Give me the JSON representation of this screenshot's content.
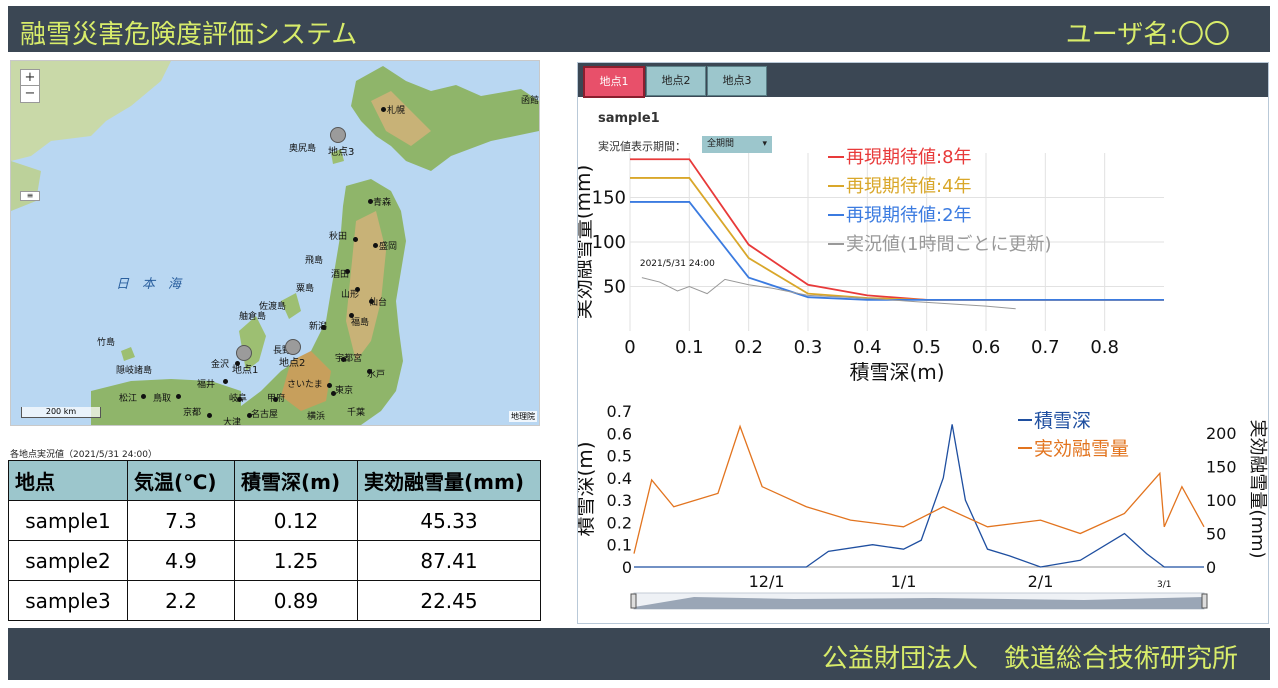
{
  "header": {
    "title": "融雪災害危険度評価システム",
    "user_label": "ユーザ名:〇〇"
  },
  "footer": {
    "organization": "公益財団法人　鉄道総合技術研究所"
  },
  "map": {
    "zoom_in": "+",
    "zoom_out": "−",
    "sea_label": "日　本　海",
    "places": [
      "函館",
      "札幌",
      "奥尻島",
      "青森",
      "秋田",
      "盛岡",
      "飛島",
      "酒田",
      "粟島",
      "山形",
      "仙台",
      "佐渡島",
      "新潟",
      "福島",
      "舳倉島",
      "竹島",
      "隠岐諸島",
      "松江",
      "鳥取",
      "福井",
      "金沢",
      "長野",
      "宇都宮",
      "水戸",
      "さいたま",
      "東京",
      "千葉",
      "甲府",
      "岐阜",
      "名古屋",
      "京都",
      "大津",
      "横浜"
    ],
    "markers": [
      "地点3",
      "地点1",
      "地点2"
    ],
    "scale": "200 km",
    "attribution": "地理院"
  },
  "observations": {
    "caption": "各地点実況値（2021/5/31 24:00）",
    "columns": [
      "地点",
      "気温(℃)",
      "積雪深(m)",
      "実効融雪量(mm)"
    ],
    "rows": [
      [
        "sample1",
        "7.3",
        "0.12",
        "45.33"
      ],
      [
        "sample2",
        "4.9",
        "1.25",
        "87.41"
      ],
      [
        "sample3",
        "2.2",
        "0.89",
        "22.45"
      ]
    ]
  },
  "panel": {
    "tabs": [
      "地点1",
      "地点2",
      "地点3"
    ],
    "active_tab": 0,
    "sample_title": "sample1",
    "period_label": "実況値表示期間：",
    "period_value": "全期間"
  },
  "colors": {
    "header_bg": "#3b4754",
    "title_text": "#d8ec6a",
    "tab_active": "#e8506a",
    "tab": "#9cc6cc"
  },
  "chart_data": [
    {
      "type": "line",
      "xlabel": "積雪深(m)",
      "ylabel": "実効融雪量(mm)",
      "xlim": [
        0,
        0.9
      ],
      "ylim": [
        0,
        200
      ],
      "xticks": [
        "0",
        "0.1",
        "0.2",
        "0.3",
        "0.4",
        "0.5",
        "0.6",
        "0.7",
        "0.8"
      ],
      "yticks": [
        "50",
        "100",
        "150"
      ],
      "grid": true,
      "legend_position": "top-right",
      "annotation": "2021/5/31 24:00",
      "series": [
        {
          "name": "再現期待値:8年",
          "color": "#e83a3a",
          "x": [
            0,
            0.1,
            0.2,
            0.3,
            0.4,
            0.5,
            0.9
          ],
          "y": [
            193,
            193,
            97,
            52,
            40,
            35,
            35
          ]
        },
        {
          "name": "再現期待値:4年",
          "color": "#d9a72a",
          "x": [
            0,
            0.1,
            0.2,
            0.3,
            0.4,
            0.5,
            0.9
          ],
          "y": [
            172,
            172,
            82,
            42,
            37,
            35,
            35
          ]
        },
        {
          "name": "再現期待値:2年",
          "color": "#3b7be0",
          "x": [
            0,
            0.1,
            0.2,
            0.3,
            0.4,
            0.5,
            0.9
          ],
          "y": [
            145,
            145,
            60,
            38,
            35,
            35,
            35
          ]
        },
        {
          "name": "実況値(1時間ごとに更新)",
          "color": "#999999",
          "x": [
            0.02,
            0.05,
            0.08,
            0.1,
            0.13,
            0.16,
            0.2,
            0.24,
            0.3,
            0.36,
            0.42,
            0.48,
            0.55,
            0.6,
            0.65
          ],
          "y": [
            60,
            55,
            45,
            50,
            42,
            58,
            52,
            48,
            40,
            38,
            36,
            33,
            30,
            28,
            25
          ]
        }
      ]
    },
    {
      "type": "line",
      "xlabel": "",
      "ylabel": "積雪深(m)",
      "ylabel_right": "実効融雪量(mm)",
      "ylim": [
        0,
        0.7
      ],
      "ylim_right": [
        0,
        233
      ],
      "xticks": [
        "12/1",
        "1/1",
        "2/1",
        "3/1"
      ],
      "yticks": [
        "0",
        "0.1",
        "0.2",
        "0.3",
        "0.4",
        "0.5",
        "0.6",
        "0.7"
      ],
      "yticks_right": [
        "0",
        "50",
        "100",
        "150",
        "200"
      ],
      "legend_position": "top-right",
      "series": [
        {
          "name": "積雪深",
          "axis": "left",
          "color": "#1f4fa0",
          "x": [
            "11/1",
            "11/20",
            "12/10",
            "12/15",
            "12/25",
            "1/1",
            "1/5",
            "1/10",
            "1/12",
            "1/15",
            "1/20",
            "1/25",
            "2/1",
            "2/10",
            "2/20",
            "2/25",
            "3/1",
            "3/10"
          ],
          "y": [
            0,
            0,
            0,
            0.07,
            0.1,
            0.08,
            0.12,
            0.4,
            0.64,
            0.3,
            0.08,
            0.05,
            0,
            0.03,
            0.15,
            0.06,
            0,
            0
          ]
        },
        {
          "name": "実効融雪量",
          "axis": "right",
          "color": "#e2741f",
          "x": [
            "11/1",
            "11/5",
            "11/10",
            "11/20",
            "11/25",
            "11/30",
            "12/10",
            "12/20",
            "1/1",
            "1/10",
            "1/20",
            "2/1",
            "2/10",
            "2/20",
            "2/28",
            "3/1",
            "3/5",
            "3/10"
          ],
          "y": [
            20,
            130,
            90,
            110,
            210,
            120,
            90,
            70,
            60,
            90,
            60,
            70,
            50,
            80,
            140,
            60,
            120,
            60
          ]
        }
      ]
    }
  ]
}
